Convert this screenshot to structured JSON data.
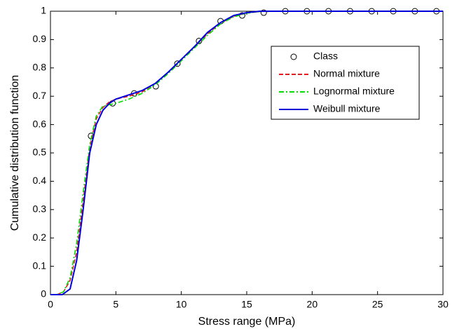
{
  "chart_data": {
    "type": "line",
    "xlabel": "Stress range (MPa)",
    "ylabel": "Cumulative distribution function",
    "xlim": [
      0,
      30
    ],
    "ylim": [
      0,
      1
    ],
    "xticks": [
      0,
      5,
      10,
      15,
      20,
      25,
      30
    ],
    "yticks": [
      0,
      0.1,
      0.2,
      0.3,
      0.4,
      0.5,
      0.6,
      0.7,
      0.8,
      0.9,
      1
    ],
    "grid": false,
    "legend": "upper right",
    "series": [
      {
        "name": "Class",
        "color": "#000000",
        "style": "marker",
        "x": [
          3.1,
          4.75,
          6.4,
          8.05,
          9.7,
          11.35,
          13.0,
          14.65,
          16.3,
          17.95,
          19.6,
          21.25,
          22.9,
          24.55,
          26.2,
          27.85,
          29.5
        ],
        "values": [
          0.56,
          0.675,
          0.71,
          0.735,
          0.815,
          0.895,
          0.965,
          0.985,
          0.995,
          1,
          1,
          1,
          1,
          1,
          1,
          1,
          1
        ]
      },
      {
        "name": "Normal mixture",
        "color": "#e41a1c",
        "style": "dashed",
        "x": [
          0,
          0.5,
          1,
          1.5,
          2,
          2.5,
          3,
          3.5,
          4,
          4.5,
          5,
          6,
          7,
          8,
          9,
          10,
          11,
          12,
          13,
          14,
          15,
          16,
          18,
          20,
          25,
          30
        ],
        "values": [
          0,
          0,
          0.01,
          0.05,
          0.15,
          0.33,
          0.52,
          0.62,
          0.66,
          0.68,
          0.69,
          0.7,
          0.715,
          0.745,
          0.785,
          0.83,
          0.875,
          0.92,
          0.958,
          0.982,
          0.994,
          0.999,
          1,
          1,
          1,
          1
        ]
      },
      {
        "name": "Lognormal mixture",
        "color": "#00dd00",
        "style": "dashdot",
        "x": [
          0,
          0.5,
          1,
          1.5,
          2,
          2.5,
          3,
          3.5,
          4,
          4.5,
          5,
          6,
          7,
          8,
          9,
          10,
          11,
          12,
          13,
          14,
          15,
          16,
          18,
          20,
          25,
          30
        ],
        "values": [
          0,
          0,
          0.01,
          0.06,
          0.18,
          0.36,
          0.53,
          0.63,
          0.665,
          0.67,
          0.675,
          0.69,
          0.71,
          0.74,
          0.78,
          0.825,
          0.87,
          0.915,
          0.955,
          0.98,
          0.993,
          0.999,
          1,
          1,
          1,
          1
        ]
      },
      {
        "name": "Weibull mixture",
        "color": "#0000dd",
        "style": "solid",
        "x": [
          0,
          0.5,
          0.9,
          1.5,
          2,
          2.5,
          3,
          3.5,
          4,
          4.5,
          5,
          6,
          7,
          8,
          9,
          10,
          11,
          12,
          13,
          14,
          15,
          16,
          18,
          20,
          25,
          30
        ],
        "values": [
          0,
          0,
          0,
          0.02,
          0.12,
          0.3,
          0.5,
          0.6,
          0.65,
          0.675,
          0.69,
          0.705,
          0.72,
          0.745,
          0.785,
          0.83,
          0.875,
          0.925,
          0.96,
          0.985,
          0.995,
          1,
          1,
          1,
          1,
          1
        ]
      }
    ]
  }
}
